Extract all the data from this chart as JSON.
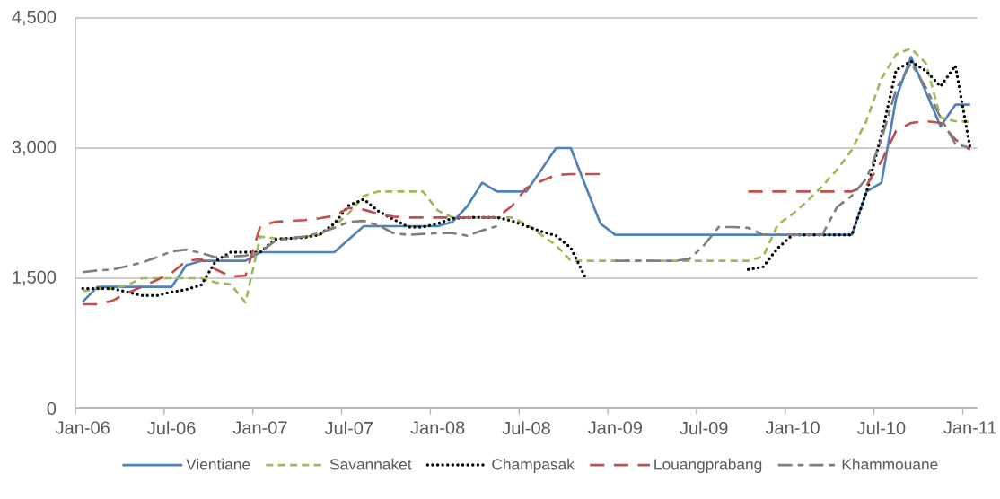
{
  "chart_data": {
    "type": "line",
    "categories": [
      "Jan-06",
      null,
      null,
      null,
      null,
      null,
      "Jul-06",
      null,
      null,
      null,
      null,
      null,
      "Jan-07",
      null,
      null,
      null,
      null,
      null,
      "Jul-07",
      null,
      null,
      null,
      null,
      null,
      "Jan-08",
      null,
      null,
      null,
      null,
      null,
      "Jul-08",
      null,
      null,
      null,
      null,
      null,
      "Jan-09",
      null,
      null,
      null,
      null,
      null,
      "Jul-09",
      null,
      null,
      null,
      null,
      null,
      "Jan-10",
      null,
      null,
      null,
      null,
      null,
      "Jul-10",
      null,
      null,
      null,
      null,
      null,
      "Jan-11"
    ],
    "series": [
      {
        "name": "Vientiane",
        "color": "#4f81bd",
        "line_style": "solid",
        "values": [
          1230,
          1400,
          1400,
          1400,
          1400,
          1400,
          1400,
          1650,
          1700,
          1700,
          1700,
          1700,
          1800,
          1800,
          1800,
          1800,
          1800,
          1800,
          1950,
          2100,
          2100,
          2100,
          2100,
          2100,
          2100,
          2150,
          2330,
          2600,
          2500,
          2500,
          2500,
          2750,
          3000,
          3000,
          2560,
          2130,
          2000,
          2000,
          2000,
          2000,
          2000,
          2000,
          2000,
          2000,
          2000,
          2000,
          2000,
          2000,
          2000,
          2000,
          2000,
          2000,
          2000,
          2500,
          2600,
          3580,
          4050,
          3650,
          3250,
          3500,
          3500
        ]
      },
      {
        "name": "Savannaket",
        "color": "#9bbb59",
        "line_style": "dashed",
        "values": [
          1350,
          1380,
          1380,
          1420,
          1500,
          1500,
          1500,
          1500,
          1500,
          1450,
          1430,
          1220,
          1980,
          1960,
          1960,
          1980,
          2000,
          2100,
          2250,
          2450,
          2500,
          2500,
          2500,
          2500,
          2280,
          2200,
          2200,
          2200,
          2200,
          2200,
          2120,
          2000,
          1880,
          1700,
          1700,
          1700,
          1700,
          1700,
          1700,
          1700,
          1700,
          1700,
          1700,
          1700,
          1700,
          1700,
          1750,
          2120,
          2240,
          2390,
          2560,
          2750,
          2980,
          3320,
          3800,
          4080,
          4150,
          3980,
          3350,
          3310,
          3300
        ]
      },
      {
        "name": "Champasak",
        "color": "#000000",
        "line_style": "dotted",
        "values": [
          1380,
          1380,
          1380,
          1340,
          1300,
          1300,
          1340,
          1370,
          1420,
          1700,
          1800,
          1800,
          1800,
          1950,
          1960,
          1970,
          2000,
          2130,
          2340,
          2410,
          2270,
          2180,
          2090,
          2090,
          2130,
          2190,
          2200,
          2200,
          2200,
          2160,
          2100,
          2040,
          1990,
          1850,
          1500,
          null,
          null,
          null,
          null,
          null,
          null,
          null,
          null,
          null,
          null,
          1600,
          1630,
          1850,
          2000,
          2000,
          2000,
          2000,
          2000,
          2500,
          3150,
          3900,
          4000,
          3890,
          3710,
          3950,
          3000
        ]
      },
      {
        "name": "Louangprabang",
        "color": "#c0504d",
        "line_style": "long dashed",
        "values": [
          1200,
          1200,
          1240,
          1330,
          1400,
          1480,
          1560,
          1700,
          1720,
          1600,
          1520,
          1530,
          2100,
          2150,
          2160,
          2170,
          2190,
          2220,
          2310,
          2290,
          2240,
          2210,
          2200,
          2200,
          2200,
          2200,
          2200,
          2200,
          2200,
          2330,
          2540,
          2620,
          2690,
          2700,
          2700,
          2700,
          null,
          null,
          null,
          null,
          null,
          null,
          null,
          null,
          null,
          2500,
          2500,
          2500,
          2500,
          2500,
          2500,
          2500,
          2500,
          2570,
          2850,
          3200,
          3290,
          3310,
          3290,
          3100,
          2980
        ]
      },
      {
        "name": "Khammouane",
        "color": "#7f7f7f",
        "line_style": "dash dot",
        "values": [
          1570,
          1590,
          1600,
          1640,
          1680,
          1740,
          1810,
          1830,
          1790,
          1740,
          1750,
          1760,
          1800,
          1930,
          1960,
          1980,
          2020,
          2080,
          2150,
          2160,
          2110,
          2020,
          2000,
          2010,
          2020,
          2020,
          1990,
          2050,
          2100,
          null,
          null,
          null,
          null,
          null,
          null,
          null,
          1700,
          1700,
          1700,
          1700,
          1700,
          1720,
          1880,
          2090,
          2090,
          2080,
          2000,
          2000,
          2000,
          2000,
          2000,
          2320,
          2450,
          2650,
          3100,
          3680,
          3980,
          3700,
          3350,
          3050,
          3000
        ]
      }
    ],
    "ylim": [
      0,
      4500
    ],
    "yticks": [
      {
        "value": 0,
        "label": "0"
      },
      {
        "value": 1500,
        "label": "1,500"
      },
      {
        "value": 3000,
        "label": "3,000"
      },
      {
        "value": 4500,
        "label": "4,500"
      }
    ],
    "grid": "y",
    "legend": "bottom"
  }
}
